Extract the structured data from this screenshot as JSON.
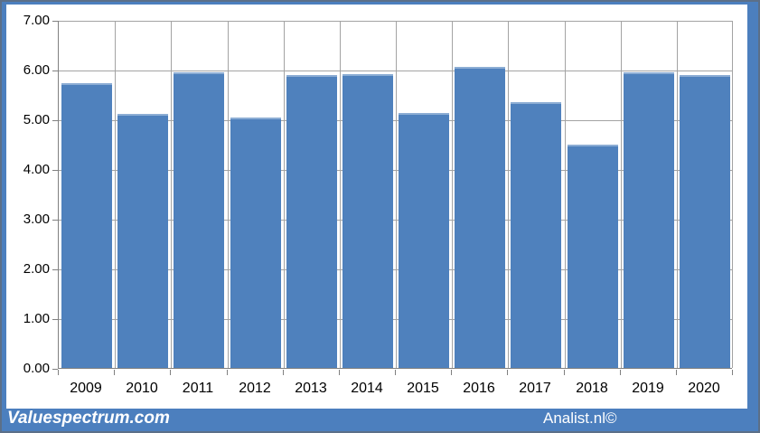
{
  "footer": {
    "left_text": "Valuespectrum.com",
    "right_text": "Analist.nl©"
  },
  "colors": {
    "bar": "#4F81BD",
    "frame": "#4C7FBE",
    "frame_edge": "#5C6F88",
    "gridline": "#A3A3A3",
    "axis": "#808080",
    "tick_text": "#000000",
    "watermark_text": "#FFFFFF",
    "plot_bg": "#FFFFFF"
  },
  "chart_data": {
    "type": "bar",
    "title": "",
    "xlabel": "",
    "ylabel": "",
    "categories": [
      "2009",
      "2010",
      "2011",
      "2012",
      "2013",
      "2014",
      "2015",
      "2016",
      "2017",
      "2018",
      "2019",
      "2020"
    ],
    "values": [
      5.73,
      5.1,
      5.94,
      5.03,
      5.89,
      5.91,
      5.12,
      6.05,
      5.34,
      4.49,
      5.95,
      5.89
    ],
    "bar_color": "#4F81BD",
    "ylim": [
      0,
      7
    ],
    "ytick_step": 1,
    "ytick_labels": [
      "0.00",
      "1.00",
      "2.00",
      "3.00",
      "4.00",
      "5.00",
      "6.00",
      "7.00"
    ],
    "grid": true,
    "gridlines": "horizontal-and-vertical",
    "legend_position": "none"
  }
}
